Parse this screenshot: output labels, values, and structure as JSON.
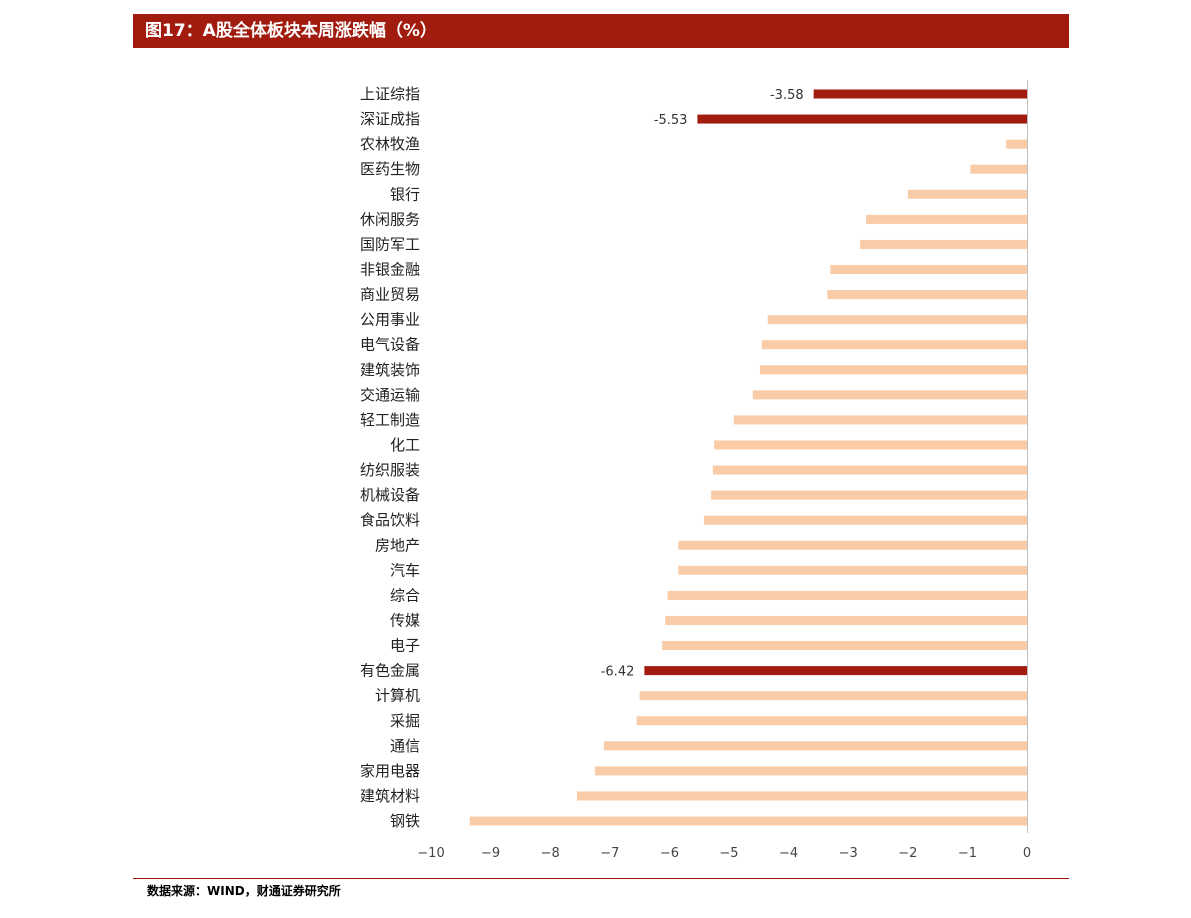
{
  "header": {
    "title": "图17：A股全体板块本周涨跌幅（%）"
  },
  "footer": {
    "source": "数据来源：WIND，财通证券研究所"
  },
  "colors": {
    "highlight": "#a11c0f",
    "normal": "#f9cba6",
    "title_bg": "#a11c0f"
  },
  "chart_data": {
    "type": "bar",
    "orientation": "horizontal",
    "xlim": [
      -10,
      0
    ],
    "xticks": [
      "−10",
      "−9",
      "−8",
      "−7",
      "−6",
      "−5",
      "−4",
      "−3",
      "−2",
      "−1",
      "0"
    ],
    "grid": false,
    "categories": [
      "上证综指",
      "深证成指",
      "农林牧渔",
      "医药生物",
      "银行",
      "休闲服务",
      "国防军工",
      "非银金融",
      "商业贸易",
      "公用事业",
      "电气设备",
      "建筑装饰",
      "交通运输",
      "轻工制造",
      "化工",
      "纺织服装",
      "机械设备",
      "食品饮料",
      "房地产",
      "汽车",
      "综合",
      "传媒",
      "电子",
      "有色金属",
      "计算机",
      "采掘",
      "通信",
      "家用电器",
      "建筑材料",
      "钢铁"
    ],
    "values": [
      -3.58,
      -5.53,
      -0.35,
      -0.95,
      -2.0,
      -2.7,
      -2.8,
      -3.3,
      -3.35,
      -4.35,
      -4.45,
      -4.48,
      -4.6,
      -4.92,
      -5.25,
      -5.27,
      -5.3,
      -5.42,
      -5.85,
      -5.85,
      -6.03,
      -6.07,
      -6.12,
      -6.42,
      -6.5,
      -6.55,
      -7.1,
      -7.25,
      -7.55,
      -9.35
    ],
    "highlighted": [
      "上证综指",
      "深证成指",
      "有色金属"
    ],
    "data_labels": {
      "上证综指": "-3.58",
      "深证成指": "-5.53",
      "有色金属": "-6.42"
    }
  }
}
